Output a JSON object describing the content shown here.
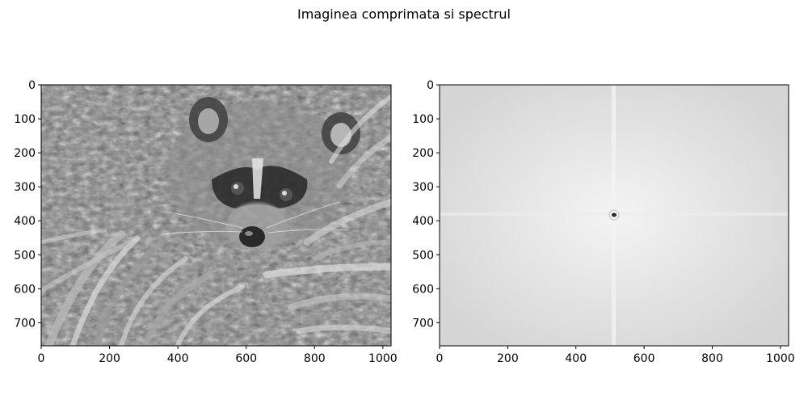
{
  "figure": {
    "title": "Imaginea comprimata si spectrul",
    "background": "#ffffff"
  },
  "chart_data": [
    {
      "type": "heatmap",
      "title": "",
      "xlabel": "",
      "ylabel": "",
      "xlim": [
        0,
        1024
      ],
      "ylim": [
        768,
        0
      ],
      "xticks": [
        0,
        200,
        400,
        600,
        800,
        1000
      ],
      "yticks": [
        0,
        100,
        200,
        300,
        400,
        500,
        600,
        700
      ],
      "colormap": "gray",
      "content": "grayscale raccoon photo",
      "grid": false
    },
    {
      "type": "heatmap",
      "title": "",
      "xlabel": "",
      "ylabel": "",
      "xlim": [
        0,
        1024
      ],
      "ylim": [
        768,
        0
      ],
      "xticks": [
        0,
        200,
        400,
        600,
        800,
        1000
      ],
      "yticks": [
        0,
        100,
        200,
        300,
        400,
        500,
        600,
        700
      ],
      "colormap": "gray",
      "content": "Fourier magnitude spectrum, light gray with dark center point",
      "center_point": [
        512,
        384
      ],
      "grid": false
    }
  ]
}
